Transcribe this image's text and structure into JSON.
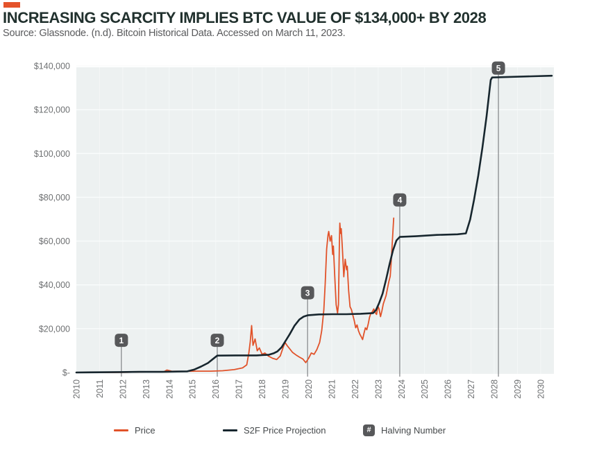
{
  "page": {
    "background": "#ffffff",
    "accent_color": "#e4532b",
    "panel_color": "#edf1f1",
    "gridline_color": "#fafcfc",
    "marker_badge_color": "#57585a",
    "marker_line_color": "#7f8285"
  },
  "header": {
    "title": "INCREASING SCARCITY IMPLIES BTC VALUE OF $134,000+ BY 2028",
    "source": "Source: Glassnode. (n.d). Bitcoin Historical Data. Accessed on March 11, 2023."
  },
  "legend": {
    "price_label": "Price",
    "s2f_label": "S2F Price Projection",
    "halving_icon": "#",
    "halving_label": "Halving Number"
  },
  "chart_data": {
    "type": "line",
    "title": "",
    "xlabel": "",
    "ylabel": "",
    "grid": "light panel with white horizontal gridlines at each $20,000 and faint vertical year lines",
    "legend_position": "bottom",
    "x_range": [
      2010,
      2030.57
    ],
    "ylim": [
      0,
      140000
    ],
    "x_ticks": [
      "2010",
      "2011",
      "2012",
      "2013",
      "2014",
      "2015",
      "2016",
      "2017",
      "2018",
      "2019",
      "2020",
      "2021",
      "2022",
      "2023",
      "2024",
      "2025",
      "2026",
      "2027",
      "2028",
      "2029",
      "2030"
    ],
    "y_ticks": [
      {
        "value": 0,
        "label": "$-"
      },
      {
        "value": 20000,
        "label": "$20,000"
      },
      {
        "value": 40000,
        "label": "$40,000"
      },
      {
        "value": 60000,
        "label": "$60,000"
      },
      {
        "value": 80000,
        "label": "$80,000"
      },
      {
        "value": 100000,
        "label": "$100,000"
      },
      {
        "value": 120000,
        "label": "$120,000"
      },
      {
        "value": 140000,
        "label": "$140,000"
      }
    ],
    "series": [
      {
        "name": "Price",
        "color": "#e15229",
        "stroke_width": 1.8,
        "points": [
          [
            2010.0,
            0
          ],
          [
            2011.6,
            0
          ],
          [
            2012.2,
            100
          ],
          [
            2013.0,
            300
          ],
          [
            2013.76,
            300
          ],
          [
            2013.9,
            1100
          ],
          [
            2014.1,
            600
          ],
          [
            2014.6,
            500
          ],
          [
            2015.2,
            600
          ],
          [
            2015.8,
            600
          ],
          [
            2016.3,
            800
          ],
          [
            2016.8,
            1300
          ],
          [
            2017.16,
            2100
          ],
          [
            2017.34,
            3500
          ],
          [
            2017.43,
            8900
          ],
          [
            2017.49,
            14000
          ],
          [
            2017.55,
            21400
          ],
          [
            2017.61,
            12400
          ],
          [
            2017.7,
            15300
          ],
          [
            2017.79,
            9900
          ],
          [
            2017.88,
            11200
          ],
          [
            2018.0,
            8300
          ],
          [
            2018.12,
            8900
          ],
          [
            2018.27,
            7500
          ],
          [
            2018.45,
            6500
          ],
          [
            2018.63,
            5900
          ],
          [
            2018.78,
            7500
          ],
          [
            2018.9,
            11200
          ],
          [
            2018.99,
            13700
          ],
          [
            2019.07,
            12400
          ],
          [
            2019.19,
            10800
          ],
          [
            2019.31,
            9200
          ],
          [
            2019.46,
            8000
          ],
          [
            2019.61,
            7000
          ],
          [
            2019.76,
            6100
          ],
          [
            2019.88,
            4500
          ],
          [
            2020.0,
            6400
          ],
          [
            2020.12,
            8900
          ],
          [
            2020.24,
            8300
          ],
          [
            2020.36,
            10500
          ],
          [
            2020.48,
            13700
          ],
          [
            2020.57,
            19100
          ],
          [
            2020.66,
            28400
          ],
          [
            2020.72,
            40500
          ],
          [
            2020.78,
            56400
          ],
          [
            2020.84,
            62800
          ],
          [
            2020.87,
            64400
          ],
          [
            2020.93,
            60000
          ],
          [
            2020.99,
            62500
          ],
          [
            2021.04,
            53900
          ],
          [
            2021.07,
            57700
          ],
          [
            2021.13,
            43700
          ],
          [
            2021.19,
            30900
          ],
          [
            2021.25,
            27100
          ],
          [
            2021.29,
            31000
          ],
          [
            2021.33,
            60000
          ],
          [
            2021.35,
            68200
          ],
          [
            2021.38,
            63500
          ],
          [
            2021.41,
            65700
          ],
          [
            2021.46,
            56400
          ],
          [
            2021.52,
            43700
          ],
          [
            2021.58,
            51700
          ],
          [
            2021.64,
            46900
          ],
          [
            2021.67,
            48500
          ],
          [
            2021.73,
            37300
          ],
          [
            2021.79,
            30000
          ],
          [
            2021.85,
            28700
          ],
          [
            2021.91,
            26100
          ],
          [
            2021.97,
            23600
          ],
          [
            2022.03,
            20400
          ],
          [
            2022.09,
            21700
          ],
          [
            2022.15,
            19100
          ],
          [
            2022.21,
            17500
          ],
          [
            2022.27,
            16300
          ],
          [
            2022.33,
            15000
          ],
          [
            2022.39,
            17900
          ],
          [
            2022.45,
            20400
          ],
          [
            2022.51,
            19500
          ],
          [
            2022.57,
            22000
          ],
          [
            2022.63,
            25200
          ],
          [
            2022.69,
            27100
          ],
          [
            2022.75,
            27700
          ],
          [
            2022.81,
            29000
          ],
          [
            2022.87,
            27400
          ],
          [
            2022.93,
            26500
          ],
          [
            2022.99,
            30300
          ],
          [
            2023.04,
            29000
          ],
          [
            2023.1,
            25500
          ],
          [
            2023.16,
            28100
          ],
          [
            2023.22,
            31300
          ],
          [
            2023.28,
            33200
          ],
          [
            2023.34,
            35100
          ],
          [
            2023.4,
            38300
          ],
          [
            2023.46,
            41500
          ],
          [
            2023.52,
            44000
          ],
          [
            2023.55,
            48500
          ],
          [
            2023.58,
            53900
          ],
          [
            2023.61,
            59600
          ],
          [
            2023.64,
            65100
          ],
          [
            2023.67,
            70500
          ]
        ]
      },
      {
        "name": "S2F Price Projection",
        "color": "#17262e",
        "stroke_width": 2.6,
        "points": [
          [
            2010.0,
            0
          ],
          [
            2011.9,
            200
          ],
          [
            2012.7,
            300
          ],
          [
            2013.7,
            300
          ],
          [
            2014.78,
            500
          ],
          [
            2015.07,
            1300
          ],
          [
            2015.37,
            2700
          ],
          [
            2015.67,
            4300
          ],
          [
            2015.88,
            6100
          ],
          [
            2016.07,
            7700
          ],
          [
            2016.87,
            7800
          ],
          [
            2017.76,
            7800
          ],
          [
            2018.3,
            8100
          ],
          [
            2018.51,
            8800
          ],
          [
            2018.66,
            9600
          ],
          [
            2018.84,
            11500
          ],
          [
            2019.01,
            14400
          ],
          [
            2019.19,
            17500
          ],
          [
            2019.4,
            21400
          ],
          [
            2019.61,
            24200
          ],
          [
            2019.79,
            25500
          ],
          [
            2019.96,
            26100
          ],
          [
            2020.45,
            26500
          ],
          [
            2021.04,
            26600
          ],
          [
            2021.64,
            26600
          ],
          [
            2022.24,
            26800
          ],
          [
            2022.78,
            27100
          ],
          [
            2022.9,
            28400
          ],
          [
            2023.04,
            31600
          ],
          [
            2023.19,
            36000
          ],
          [
            2023.34,
            42400
          ],
          [
            2023.49,
            49400
          ],
          [
            2023.64,
            55800
          ],
          [
            2023.79,
            60300
          ],
          [
            2023.93,
            61900
          ],
          [
            2024.63,
            62200
          ],
          [
            2025.52,
            62800
          ],
          [
            2026.42,
            63100
          ],
          [
            2026.78,
            63500
          ],
          [
            2026.96,
            69800
          ],
          [
            2027.13,
            78800
          ],
          [
            2027.31,
            89900
          ],
          [
            2027.49,
            102700
          ],
          [
            2027.67,
            117000
          ],
          [
            2027.79,
            128200
          ],
          [
            2027.85,
            133600
          ],
          [
            2027.91,
            134700
          ],
          [
            2028.51,
            134900
          ],
          [
            2029.4,
            135200
          ],
          [
            2030.48,
            135500
          ]
        ]
      }
    ],
    "halving_markers": [
      {
        "number": "1",
        "year": 2011.94,
        "label_value": 14700
      },
      {
        "number": "2",
        "year": 2016.07,
        "label_value": 14700
      },
      {
        "number": "3",
        "year": 2019.96,
        "label_value": 36400
      },
      {
        "number": "4",
        "year": 2023.93,
        "label_value": 78800
      },
      {
        "number": "5",
        "year": 2028.18,
        "label_value": 139000
      }
    ]
  }
}
